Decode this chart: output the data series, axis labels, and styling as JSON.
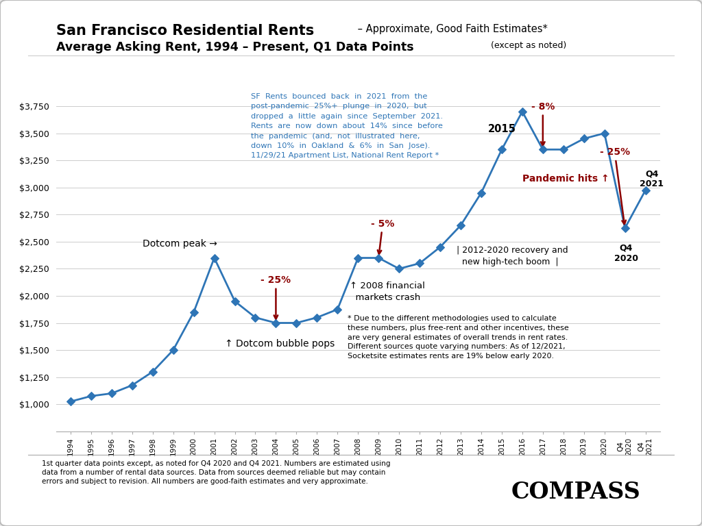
{
  "years": [
    "1994",
    "1995",
    "1996",
    "1997",
    "1998",
    "1999",
    "2000",
    "2001",
    "2002",
    "2003",
    "2004",
    "2005",
    "2006",
    "2007",
    "2008",
    "2009",
    "2010",
    "2011",
    "2012",
    "2013",
    "2014",
    "2015",
    "2016",
    "2017",
    "2018",
    "2019",
    "2020",
    "Q4\n2020",
    "Q4\n2021"
  ],
  "x_numeric": [
    0,
    1,
    2,
    3,
    4,
    5,
    6,
    7,
    8,
    9,
    10,
    11,
    12,
    13,
    14,
    15,
    16,
    17,
    18,
    19,
    20,
    21,
    22,
    23,
    24,
    25,
    26,
    27,
    28
  ],
  "rents": [
    1025,
    1075,
    1100,
    1175,
    1300,
    1500,
    1850,
    2350,
    1950,
    1800,
    1750,
    1750,
    1800,
    1875,
    2350,
    2350,
    2250,
    2300,
    2450,
    2650,
    2950,
    3350,
    3700,
    3350,
    3350,
    3450,
    3500,
    2625,
    2975
  ],
  "line_color": "#2E75B6",
  "marker_color": "#2E75B6",
  "grid_color": "#CCCCCC",
  "dark_red": "#8B0000",
  "ylim_low": 750,
  "ylim_high": 4050,
  "yticks": [
    1000,
    1250,
    1500,
    1750,
    2000,
    2250,
    2500,
    2750,
    3000,
    3250,
    3500,
    3750
  ],
  "title_main": "San Francisco Residential Rents",
  "title_sub": " – Approximate, Good Faith Estimates*",
  "title2_main": "Average Asking Rent, 1994 – Present, Q1 Data Points",
  "title2_sub": " (except as noted)",
  "bounce_text": "SF  Rents  bounced  back  in  2021  from  the\npost-pandemic  25%+  plunge  in  2020,  but\ndropped  a  little  again  since  September  2021.\nRents  are  now  down  about  14%  since  before\nthe  pandemic  (and,  not  illustrated  here,\ndown  10%  in  Oakland  &  6%  in  San  Jose).\n11/29/21 Apartment List, National Rent Report *",
  "disclaimer": "* Due to the different methodologies used to calculate\nthese numbers, plus free-rent and other incentives, these\nare very general estimates of overall trends in rent rates.\nDifferent sources quote varying numbers: As of 12/2021,\nSocketsite estimates rents are 19% below early 2020.",
  "footnote_line1": "1st quarter data points except, as noted for Q4 2020 and Q4 2021. Numbers are estimated using",
  "footnote_line2": "data from a number of rental data sources. Data from sources deemed reliable but may contain",
  "footnote_line3": "errors and subject to revision. All numbers are good-faith estimates and very approximate."
}
